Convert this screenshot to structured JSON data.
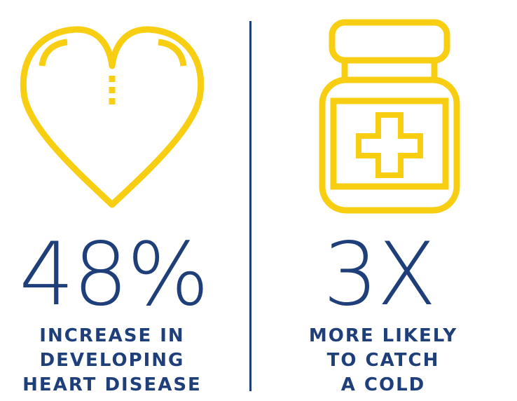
{
  "colors": {
    "icon": "#f7ce12",
    "text": "#1f3f7a",
    "divider": "#1f3f7a"
  },
  "left": {
    "icon": "heart-icon",
    "stat": "48%",
    "caption": [
      "INCREASE IN",
      "DEVELOPING",
      "HEART DISEASE"
    ]
  },
  "right": {
    "icon": "medicine-bottle-icon",
    "stat": "3X",
    "caption": [
      "MORE LIKELY",
      "TO CATCH",
      "A COLD"
    ]
  }
}
